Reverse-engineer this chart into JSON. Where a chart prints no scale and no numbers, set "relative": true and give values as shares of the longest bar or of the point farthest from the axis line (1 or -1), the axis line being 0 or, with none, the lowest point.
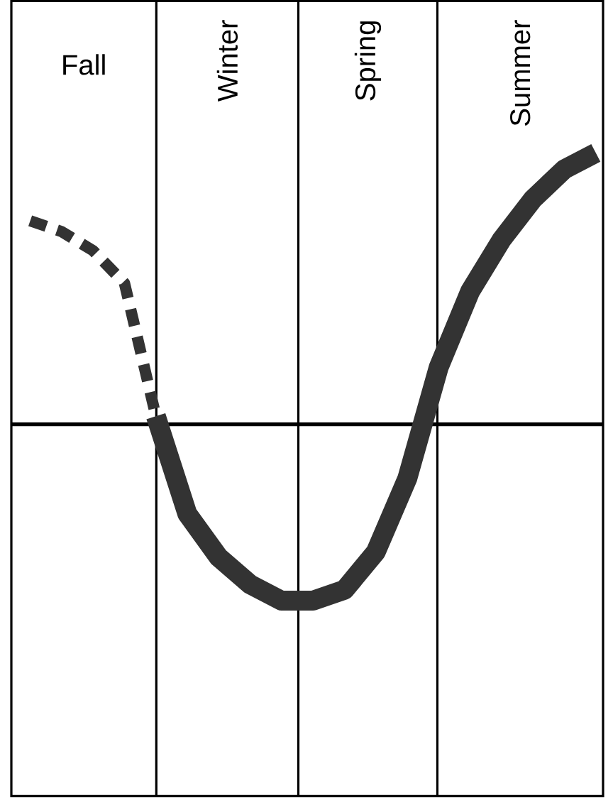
{
  "chart_data": {
    "type": "line",
    "relative": true,
    "categories": [
      null,
      null,
      null,
      null,
      null,
      null,
      null,
      null,
      null,
      null,
      null,
      null,
      null,
      null,
      null,
      null,
      null,
      null,
      null
    ],
    "annotations": [
      "Fall",
      "Winter",
      "Spring",
      "Summer"
    ],
    "series": [
      {
        "color": "#333333",
        "line_style": "dashed",
        "values": [
          0.75,
          0.71,
          0.64,
          0.52,
          0.03,
          null,
          null,
          null,
          null,
          null,
          null,
          null,
          null,
          null,
          null,
          null,
          null,
          null,
          null
        ]
      },
      {
        "color": "#333333",
        "line_style": "solid",
        "values": [
          null,
          null,
          null,
          null,
          0.03,
          -0.33,
          -0.49,
          -0.59,
          -0.65,
          -0.65,
          -0.61,
          -0.47,
          -0.2,
          0.21,
          0.49,
          0.68,
          0.83,
          0.94,
          1.0
        ]
      }
    ]
  }
}
